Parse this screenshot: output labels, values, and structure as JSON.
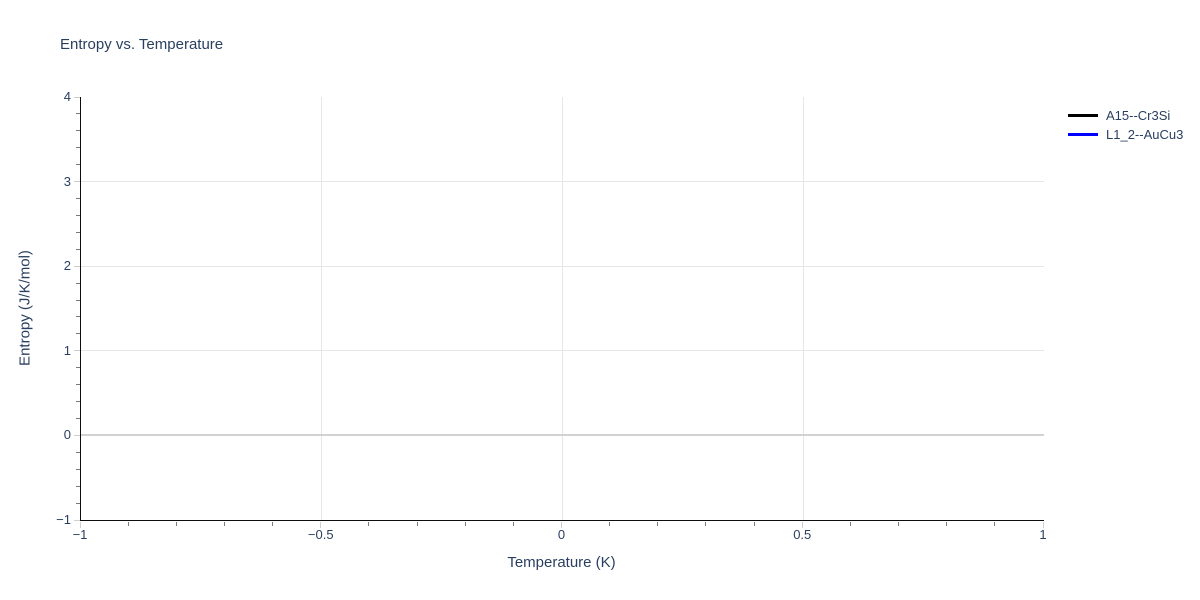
{
  "chart_data": {
    "type": "line",
    "title": "Entropy vs. Temperature",
    "xlabel": "Temperature (K)",
    "ylabel": "Entropy (J/K/mol)",
    "xlim": [
      -1,
      1
    ],
    "ylim": [
      -1,
      4
    ],
    "x_major_ticks": [
      -1,
      -0.5,
      0,
      0.5,
      1
    ],
    "x_tick_labels": [
      "−1",
      "−0.5",
      "0",
      "0.5",
      "1"
    ],
    "x_minor_step": 0.1,
    "y_major_ticks": [
      -1,
      0,
      1,
      2,
      3,
      4
    ],
    "y_tick_labels": [
      "−1",
      "0",
      "1",
      "2",
      "3",
      "4"
    ],
    "y_minor_step": 0.2,
    "grid": {
      "x_gridlines": [
        -0.5,
        0,
        0.5
      ],
      "y_gridlines": [
        0,
        1,
        2,
        3
      ],
      "zeroline_y": 0,
      "grid_on": true
    },
    "legend_position": "top-right",
    "series": [
      {
        "name": "A15--Cr3Si",
        "color": "#000000",
        "x": [],
        "y": []
      },
      {
        "name": "L1_2--AuCu3",
        "color": "#0000ff",
        "x": [],
        "y": []
      }
    ]
  },
  "colors": {
    "text": "#2a3f5f",
    "grid": "#e6e6e6",
    "zeroline": "#d2d2d2",
    "axis_line": "#0d0d0d",
    "background": "#ffffff",
    "series_a15": "#000000",
    "series_l12": "#0000ff"
  }
}
